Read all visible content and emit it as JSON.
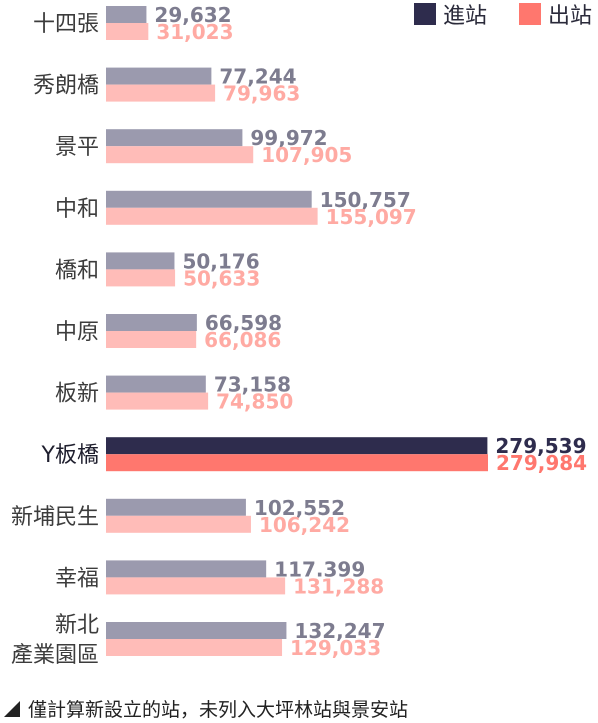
{
  "legend": {
    "in_label": "進站",
    "out_label": "出站"
  },
  "note": "僅計算新設立的站，未列入大坪林站與景安站",
  "colors": {
    "in": "#9b9aae",
    "out": "#ffbcb8",
    "in_highlight": "#2e2c4d",
    "out_highlight": "#ff776e",
    "in_label": "#7d7c8f",
    "out_label": "#ffaaa3"
  },
  "chart_data": {
    "type": "bar",
    "orientation": "horizontal",
    "categories": [
      [
        "十四張"
      ],
      [
        "秀朗橋"
      ],
      [
        "景平"
      ],
      [
        "中和"
      ],
      [
        "橋和"
      ],
      [
        "中原"
      ],
      [
        "板新"
      ],
      [
        "Y板橋"
      ],
      [
        "新埔民生"
      ],
      [
        "幸福"
      ],
      [
        "新北",
        "產業園區"
      ]
    ],
    "highlight_index": 7,
    "series": [
      {
        "name": "進站",
        "values": [
          29632,
          77244,
          99972,
          150757,
          50176,
          66598,
          73158,
          279539,
          102552,
          117399,
          132247
        ],
        "labels": [
          "29,632",
          "77,244",
          "99,972",
          "150,757",
          "50,176",
          "66,598",
          "73,158",
          "279,539",
          "102,552",
          "117.399",
          "132,247"
        ]
      },
      {
        "name": "出站",
        "values": [
          31023,
          79963,
          107905,
          155097,
          50633,
          66086,
          74850,
          279984,
          106242,
          131288,
          129033
        ],
        "labels": [
          "31,023",
          "79,963",
          "107,905",
          "155,097",
          "50,633",
          "66,086",
          "74,850",
          "279,984",
          "106,242",
          "131,288",
          "129,033"
        ]
      }
    ]
  }
}
